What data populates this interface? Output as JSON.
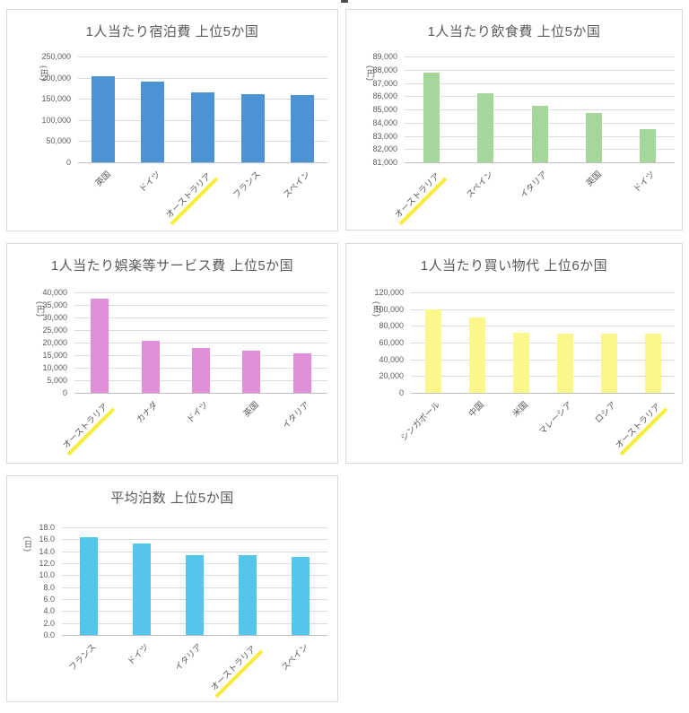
{
  "page": {
    "background": "#ffffff",
    "text_color": "#595959",
    "grid_color": "#dcdcdc",
    "highlight_color": "#f8ec3a"
  },
  "chart_data": [
    {
      "type": "bar",
      "title": "1人当たり宿泊費 上位5か国",
      "ylabel": "(円)",
      "categories": [
        "英国",
        "ドイツ",
        "オーストラリア",
        "フランス",
        "スペイン"
      ],
      "values": [
        203000,
        191000,
        166000,
        161000,
        159000
      ],
      "ylim": [
        0,
        250000
      ],
      "ytick_step": 50000,
      "tick_values": [
        0,
        50000,
        100000,
        150000,
        200000,
        250000
      ],
      "tick_labels": [
        "0",
        "50,000",
        "100,000",
        "150,000",
        "200,000",
        "250,000"
      ],
      "bar_color": "#4b93d5",
      "highlight_category": "オーストラリア",
      "grid": true,
      "legend": "none"
    },
    {
      "type": "bar",
      "title": "1人当たり飲食費 上位5か国",
      "ylabel": "(円)",
      "categories": [
        "オーストラリア",
        "スペイン",
        "イタリア",
        "英国",
        "ドイツ"
      ],
      "values": [
        87800,
        86200,
        85300,
        84700,
        83500
      ],
      "ylim": [
        81000,
        89000
      ],
      "ytick_step": 1000,
      "tick_values": [
        81000,
        82000,
        83000,
        84000,
        85000,
        86000,
        87000,
        88000,
        89000
      ],
      "tick_labels": [
        "81,000",
        "82,000",
        "83,000",
        "84,000",
        "85,000",
        "86,000",
        "87,000",
        "88,000",
        "89,000"
      ],
      "bar_color": "#a6d79a",
      "highlight_category": "オーストラリア",
      "grid": true,
      "legend": "none"
    },
    {
      "type": "bar",
      "title": "1人当たり娯楽等サービス費 上位5か国",
      "ylabel": "(円)",
      "categories": [
        "オーストラリア",
        "カナダ",
        "ドイツ",
        "英国",
        "イタリア"
      ],
      "values": [
        37400,
        20600,
        17800,
        16800,
        15900
      ],
      "ylim": [
        0,
        40000
      ],
      "ytick_step": 5000,
      "tick_values": [
        0,
        5000,
        10000,
        15000,
        20000,
        25000,
        30000,
        35000,
        40000
      ],
      "tick_labels": [
        "0",
        "5,000",
        "10,000",
        "15,000",
        "20,000",
        "25,000",
        "30,000",
        "35,000",
        "40,000"
      ],
      "bar_color": "#dd90d8",
      "highlight_category": "オーストラリア",
      "grid": true,
      "legend": "none"
    },
    {
      "type": "bar",
      "title": "1人当たり買い物代 上位6か国",
      "ylabel": "(円)",
      "categories": [
        "シンガポール",
        "中国",
        "米国",
        "マレーシア",
        "ロシア",
        "オーストラリア"
      ],
      "values": [
        100000,
        90500,
        72000,
        71000,
        71000,
        70500
      ],
      "ylim": [
        0,
        120000
      ],
      "ytick_step": 20000,
      "tick_values": [
        0,
        20000,
        40000,
        60000,
        80000,
        100000,
        120000
      ],
      "tick_labels": [
        "0",
        "20,000",
        "40,000",
        "60,000",
        "80,000",
        "100,000",
        "120,000"
      ],
      "bar_color": "#fbf78a",
      "highlight_category": "オーストラリア",
      "grid": true,
      "legend": "none"
    },
    {
      "type": "bar",
      "title": "平均泊数 上位5か国",
      "ylabel": "(日)",
      "categories": [
        "フランス",
        "ドイツ",
        "イタリア",
        "オーストラリア",
        "スペイン"
      ],
      "values": [
        16.4,
        15.3,
        13.4,
        13.3,
        13.1
      ],
      "ylim": [
        0,
        18
      ],
      "ytick_step": 2,
      "tick_values": [
        0,
        2,
        4,
        6,
        8,
        10,
        12,
        14,
        16,
        18
      ],
      "tick_labels": [
        "0.0",
        "2.0",
        "4.0",
        "6.0",
        "8.0",
        "10.0",
        "12.0",
        "14.0",
        "16.0",
        "18.0"
      ],
      "bar_color": "#54c6ec",
      "highlight_category": "オーストラリア",
      "grid": true,
      "legend": "none"
    }
  ]
}
